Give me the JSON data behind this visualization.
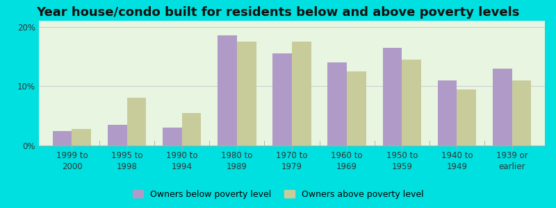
{
  "title": "Year house/condo built for residents below and above poverty levels",
  "categories": [
    "1999 to\n2000",
    "1995 to\n1998",
    "1990 to\n1994",
    "1980 to\n1989",
    "1970 to\n1979",
    "1960 to\n1969",
    "1950 to\n1959",
    "1940 to\n1949",
    "1939 or\nearlier"
  ],
  "below_poverty": [
    2.5,
    3.5,
    3.0,
    18.5,
    15.5,
    14.0,
    16.5,
    11.0,
    13.0
  ],
  "above_poverty": [
    2.8,
    8.0,
    5.5,
    17.5,
    17.5,
    12.5,
    14.5,
    9.5,
    11.0
  ],
  "below_color": "#b09bc8",
  "above_color": "#c8cc9b",
  "background_outer": "#00e0e0",
  "background_inner": "#e8f5e0",
  "ylim": [
    0,
    21
  ],
  "yticks": [
    0,
    10,
    20
  ],
  "bar_width": 0.35,
  "legend_below_label": "Owners below poverty level",
  "legend_above_label": "Owners above poverty level",
  "title_fontsize": 13,
  "tick_fontsize": 8.5,
  "legend_fontsize": 9
}
